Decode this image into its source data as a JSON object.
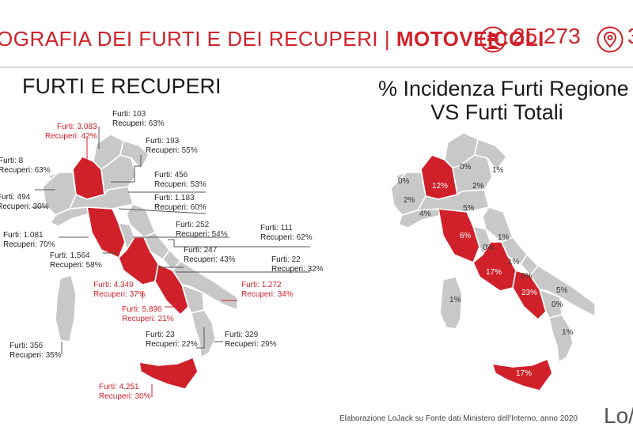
{
  "header": {
    "title_main": "OGRAFIA DEI FURTI E DEI RECUPERI | ",
    "title_bold": "MOTOVEICOLI",
    "thefts_total": "25.273",
    "locations_total": "3",
    "colors": {
      "accent": "#d0212a",
      "region_grey": "#c8c8c8"
    },
    "icons": [
      "thief-icon",
      "location-pin-icon"
    ]
  },
  "left_map": {
    "title": "FURTI E RECUPERI",
    "labels": [
      {
        "furti": "103",
        "recuperi": "63%",
        "highlight": false
      },
      {
        "furti": "3.083",
        "recuperi": "42%",
        "highlight": true
      },
      {
        "furti": "193",
        "recuperi": "55%",
        "highlight": false
      },
      {
        "furti": "8",
        "recuperi": "63%",
        "highlight": false
      },
      {
        "furti": "456",
        "recuperi": "53%",
        "highlight": false
      },
      {
        "furti": "494",
        "recuperi": "30%",
        "highlight": false
      },
      {
        "furti": "1.183",
        "recuperi": "60%",
        "highlight": false
      },
      {
        "furti": "252",
        "recuperi": "54%",
        "highlight": false
      },
      {
        "furti": "111",
        "recuperi": "62%",
        "highlight": false
      },
      {
        "furti": "1.081",
        "recuperi": "70%",
        "highlight": false
      },
      {
        "furti": "1.564",
        "recuperi": "58%",
        "highlight": false
      },
      {
        "furti": "247",
        "recuperi": "43%",
        "highlight": false
      },
      {
        "furti": "22",
        "recuperi": "32%",
        "highlight": false
      },
      {
        "furti": "4.349",
        "recuperi": "37%",
        "highlight": true
      },
      {
        "furti": "1.272",
        "recuperi": "34%",
        "highlight": true
      },
      {
        "furti": "5.896",
        "recuperi": "21%",
        "highlight": true
      },
      {
        "furti": "23",
        "recuperi": "22%",
        "highlight": false
      },
      {
        "furti": "329",
        "recuperi": "29%",
        "highlight": false
      },
      {
        "furti": "356",
        "recuperi": "35%",
        "highlight": false
      },
      {
        "furti": "4.251",
        "recuperi": "30%",
        "highlight": true
      }
    ],
    "key_furti": "Furti",
    "key_recuperi": "Recuperi"
  },
  "right_map": {
    "title_line1": "% Incidenza Furti Regione",
    "title_line2": "VS Furti Totali",
    "percentages": [
      {
        "value": "0%",
        "highlight": false
      },
      {
        "value": "1%",
        "highlight": false
      },
      {
        "value": "0%",
        "highlight": false
      },
      {
        "value": "12%",
        "highlight": true
      },
      {
        "value": "2%",
        "highlight": false
      },
      {
        "value": "2%",
        "highlight": false
      },
      {
        "value": "4%",
        "highlight": false
      },
      {
        "value": "5%",
        "highlight": false
      },
      {
        "value": "6%",
        "highlight": true
      },
      {
        "value": "1%",
        "highlight": false
      },
      {
        "value": "0%",
        "highlight": false
      },
      {
        "value": "1%",
        "highlight": false
      },
      {
        "value": "17%",
        "highlight": true
      },
      {
        "value": "0%",
        "highlight": false
      },
      {
        "value": "23%",
        "highlight": true
      },
      {
        "value": "5%",
        "highlight": false
      },
      {
        "value": "0%",
        "highlight": false
      },
      {
        "value": "1%",
        "highlight": false
      },
      {
        "value": "1%",
        "highlight": false
      },
      {
        "value": "17%",
        "highlight": true
      }
    ]
  },
  "footer": {
    "source": "Elaborazione LoJack su Fonte dati Ministero dell'Interno, anno 2020",
    "logo": "Lo/J"
  }
}
